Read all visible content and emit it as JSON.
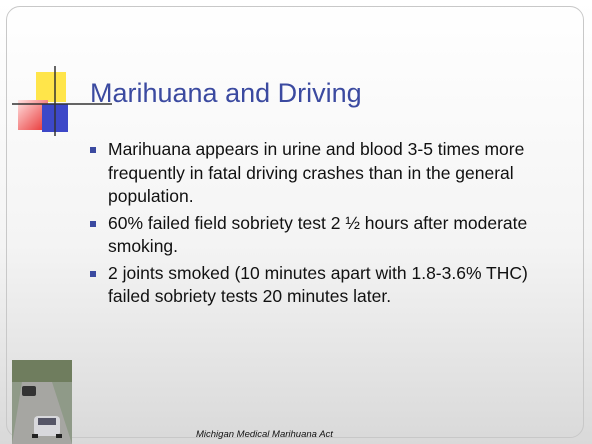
{
  "slide": {
    "title": "Marihuana and Driving",
    "bullets": [
      "Marihuana appears in urine and blood 3-5 times more frequently in fatal driving crashes than in the general population.",
      "60% failed field sobriety test 2 ½ hours after moderate smoking.",
      "2 joints smoked (10 minutes apart with 1.8-3.6% THC) failed sobriety tests 20 minutes later."
    ],
    "footer": "Michigan Medical Marihuana Act"
  }
}
